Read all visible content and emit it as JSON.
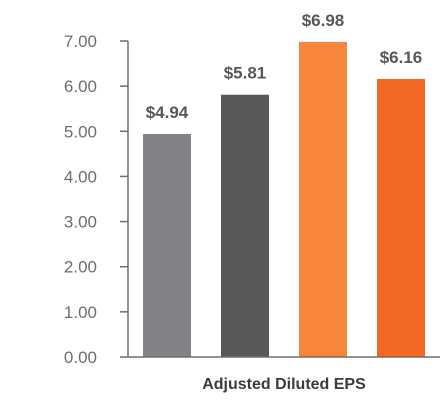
{
  "chart_data": {
    "type": "bar",
    "categories": [
      "",
      "",
      "",
      ""
    ],
    "values": [
      4.94,
      5.81,
      6.98,
      6.16
    ],
    "data_labels": [
      "$4.94",
      "$5.81",
      "$6.98",
      "$6.16"
    ],
    "colors": [
      "#808285",
      "#58595b",
      "#f7863a",
      "#f26722"
    ],
    "title": "",
    "xlabel": "Adjusted Diluted EPS",
    "ylabel": "",
    "ylim": [
      0,
      7
    ],
    "yticks": [
      "0.00",
      "1.00",
      "2.00",
      "3.00",
      "4.00",
      "5.00",
      "6.00",
      "7.00"
    ],
    "grid": false,
    "legend": "none"
  }
}
